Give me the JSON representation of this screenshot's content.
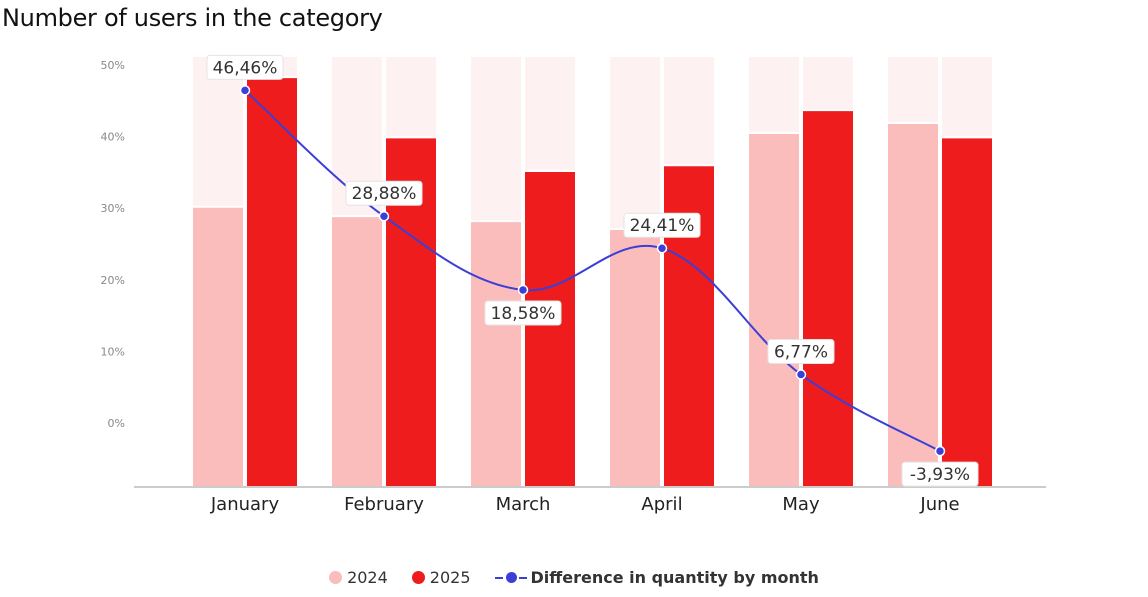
{
  "chart_data": {
    "type": "bar",
    "title": "Number of users in the category",
    "categories": [
      "January",
      "February",
      "March",
      "April",
      "May",
      "June"
    ],
    "y_ticks": [
      "50%",
      "40%",
      "30%",
      "20%",
      "10%",
      "0%"
    ],
    "series": [
      {
        "name": "2024",
        "values": [
          30.2,
          28.9,
          28.2,
          27.1,
          40.5,
          41.9
        ],
        "color": "#fbbcbc"
      },
      {
        "name": "2025",
        "values": [
          48.3,
          39.9,
          35.2,
          36.0,
          43.7,
          39.9
        ],
        "color": "#ee1c1c"
      }
    ],
    "line": {
      "name": "Difference in quantity by month",
      "values": [
        46.46,
        28.88,
        18.58,
        24.41,
        6.77,
        -3.93
      ],
      "labels": [
        "46,46%",
        "28,88%",
        "18,58%",
        "24,41%",
        "6,77%",
        "-3,93%"
      ],
      "color": "#3b3fd8"
    },
    "background_bar_color": "#fdf1f1",
    "ylim": [
      -9,
      50
    ],
    "grid": false,
    "legend_position": "bottom"
  }
}
